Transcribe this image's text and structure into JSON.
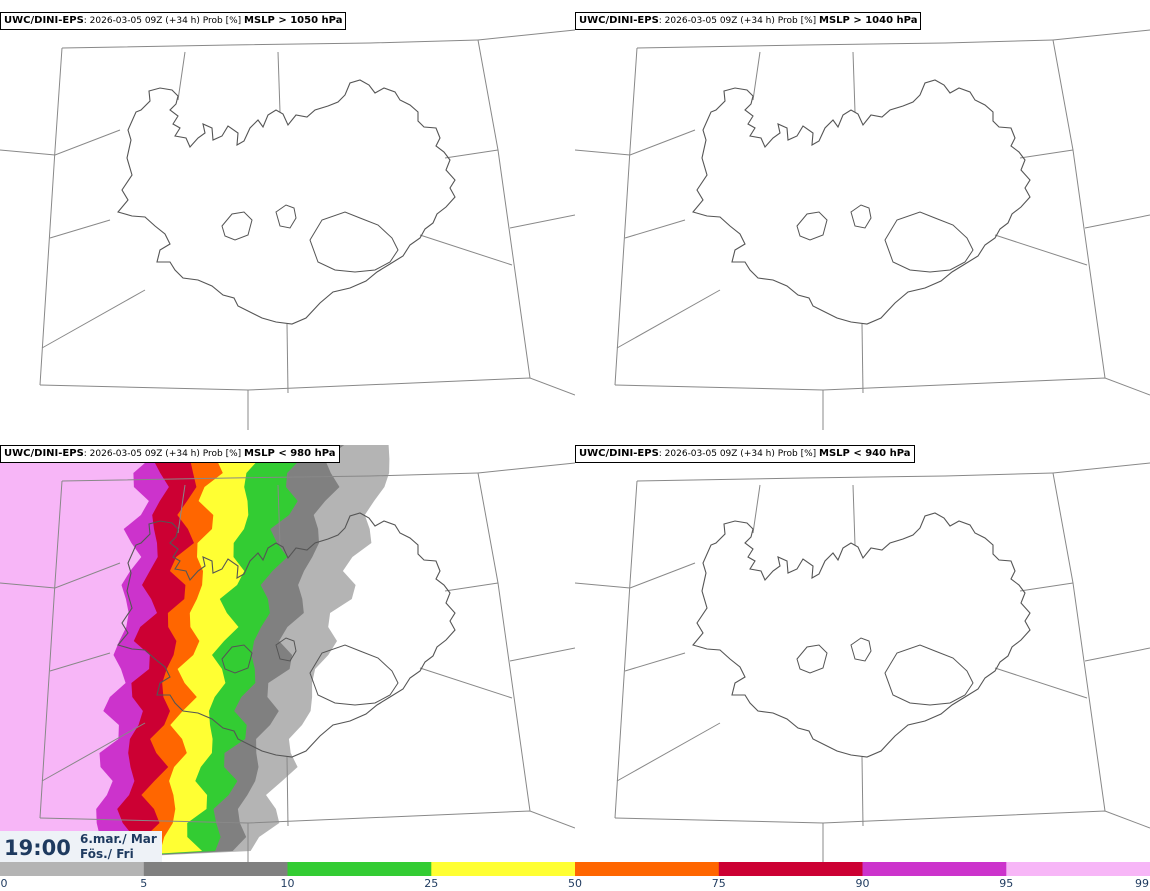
{
  "panels": [
    {
      "model": "UWC/DINI-EPS",
      "meta": ": 2026-03-05 09Z (+34 h) Prob [%] ",
      "param": "MSLP > 1050 hPa",
      "filled": false
    },
    {
      "model": "UWC/DINI-EPS",
      "meta": ": 2026-03-05 09Z (+34 h) Prob [%] ",
      "param": "MSLP > 1040 hPa",
      "filled": false
    },
    {
      "model": "UWC/DINI-EPS",
      "meta": ": 2026-03-05 09Z (+34 h) Prob [%] ",
      "param": "MSLP < 980 hPa",
      "filled": true
    },
    {
      "model": "UWC/DINI-EPS",
      "meta": ": 2026-03-05 09Z (+34 h) Prob [%] ",
      "param": "MSLP < 940 hPa",
      "filled": false
    }
  ],
  "valid_time": {
    "time": "19:00",
    "date": "6.mar./ Mar",
    "weekday": "Fös./ Fri"
  },
  "colorbar": {
    "ticks": [
      "0",
      "5",
      "10",
      "25",
      "50",
      "75",
      "90",
      "95",
      "99"
    ],
    "colors": [
      "#ffffff",
      "#b4b4b4",
      "#808080",
      "#33cc33",
      "#ffff33",
      "#ff6600",
      "#cc0033",
      "#cc33cc",
      "#f7b6f7"
    ]
  }
}
